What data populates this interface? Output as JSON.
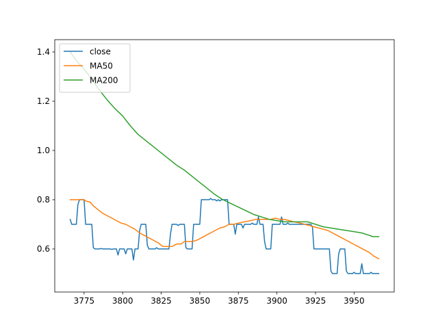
{
  "chart_data": {
    "type": "line",
    "title": "",
    "xlabel": "",
    "ylabel": "",
    "xlim": [
      3756,
      3976
    ],
    "ylim": [
      0.425,
      1.45
    ],
    "x_ticks": [
      3775,
      3800,
      3825,
      3850,
      3875,
      3900,
      3925,
      3950
    ],
    "y_ticks": [
      0.6,
      0.8,
      1.0,
      1.2,
      1.4
    ],
    "grid": false,
    "legend_position": "upper-left",
    "series": [
      {
        "name": "close",
        "color": "#1f77b4",
        "points": [
          [
            3766,
            0.72
          ],
          [
            3767,
            0.7
          ],
          [
            3770,
            0.7
          ],
          [
            3771,
            0.78
          ],
          [
            3772,
            0.8
          ],
          [
            3775,
            0.8
          ],
          [
            3776,
            0.7
          ],
          [
            3780,
            0.7
          ],
          [
            3781,
            0.605
          ],
          [
            3782,
            0.6
          ],
          [
            3785,
            0.6
          ],
          [
            3786,
            0.602
          ],
          [
            3787,
            0.6
          ],
          [
            3792,
            0.6
          ],
          [
            3793,
            0.598
          ],
          [
            3794,
            0.6
          ],
          [
            3796,
            0.6
          ],
          [
            3797,
            0.575
          ],
          [
            3798,
            0.6
          ],
          [
            3801,
            0.6
          ],
          [
            3802,
            0.58
          ],
          [
            3803,
            0.6
          ],
          [
            3806,
            0.6
          ],
          [
            3807,
            0.555
          ],
          [
            3808,
            0.6
          ],
          [
            3810,
            0.6
          ],
          [
            3811,
            0.675
          ],
          [
            3812,
            0.7
          ],
          [
            3815,
            0.7
          ],
          [
            3816,
            0.615
          ],
          [
            3817,
            0.6
          ],
          [
            3821,
            0.6
          ],
          [
            3822,
            0.605
          ],
          [
            3823,
            0.6
          ],
          [
            3830,
            0.6
          ],
          [
            3831,
            0.66
          ],
          [
            3832,
            0.7
          ],
          [
            3835,
            0.7
          ],
          [
            3836,
            0.695
          ],
          [
            3837,
            0.7
          ],
          [
            3840,
            0.7
          ],
          [
            3841,
            0.605
          ],
          [
            3842,
            0.6
          ],
          [
            3845,
            0.6
          ],
          [
            3846,
            0.7
          ],
          [
            3850,
            0.7
          ],
          [
            3851,
            0.8
          ],
          [
            3856,
            0.8
          ],
          [
            3857,
            0.805
          ],
          [
            3858,
            0.8
          ],
          [
            3860,
            0.8
          ],
          [
            3861,
            0.795
          ],
          [
            3862,
            0.8
          ],
          [
            3863,
            0.795
          ],
          [
            3864,
            0.8
          ],
          [
            3868,
            0.8
          ],
          [
            3869,
            0.7
          ],
          [
            3872,
            0.7
          ],
          [
            3873,
            0.66
          ],
          [
            3874,
            0.7
          ],
          [
            3877,
            0.7
          ],
          [
            3878,
            0.685
          ],
          [
            3879,
            0.7
          ],
          [
            3883,
            0.7
          ],
          [
            3884,
            0.705
          ],
          [
            3885,
            0.7
          ],
          [
            3887,
            0.7
          ],
          [
            3888,
            0.73
          ],
          [
            3889,
            0.7
          ],
          [
            3891,
            0.7
          ],
          [
            3892,
            0.63
          ],
          [
            3893,
            0.6
          ],
          [
            3896,
            0.6
          ],
          [
            3897,
            0.7
          ],
          [
            3902,
            0.7
          ],
          [
            3903,
            0.73
          ],
          [
            3904,
            0.7
          ],
          [
            3906,
            0.7
          ],
          [
            3907,
            0.705
          ],
          [
            3908,
            0.7
          ],
          [
            3922,
            0.7
          ],
          [
            3923,
            0.69
          ],
          [
            3924,
            0.6
          ],
          [
            3934,
            0.6
          ],
          [
            3935,
            0.51
          ],
          [
            3936,
            0.5
          ],
          [
            3939,
            0.5
          ],
          [
            3940,
            0.58
          ],
          [
            3941,
            0.6
          ],
          [
            3944,
            0.6
          ],
          [
            3945,
            0.51
          ],
          [
            3946,
            0.5
          ],
          [
            3949,
            0.5
          ],
          [
            3950,
            0.505
          ],
          [
            3951,
            0.5
          ],
          [
            3954,
            0.5
          ],
          [
            3955,
            0.54
          ],
          [
            3956,
            0.5
          ],
          [
            3960,
            0.5
          ],
          [
            3961,
            0.505
          ],
          [
            3962,
            0.5
          ],
          [
            3966,
            0.5
          ]
        ]
      },
      {
        "name": "MA50",
        "color": "#ff7f0e",
        "points": [
          [
            3766,
            0.8
          ],
          [
            3775,
            0.8
          ],
          [
            3776,
            0.795
          ],
          [
            3779,
            0.79
          ],
          [
            3781,
            0.775
          ],
          [
            3784,
            0.76
          ],
          [
            3787,
            0.745
          ],
          [
            3790,
            0.735
          ],
          [
            3793,
            0.725
          ],
          [
            3796,
            0.715
          ],
          [
            3799,
            0.705
          ],
          [
            3802,
            0.7
          ],
          [
            3805,
            0.69
          ],
          [
            3808,
            0.68
          ],
          [
            3811,
            0.665
          ],
          [
            3814,
            0.655
          ],
          [
            3817,
            0.645
          ],
          [
            3820,
            0.635
          ],
          [
            3823,
            0.625
          ],
          [
            3826,
            0.61
          ],
          [
            3832,
            0.61
          ],
          [
            3835,
            0.62
          ],
          [
            3838,
            0.62
          ],
          [
            3840,
            0.63
          ],
          [
            3845,
            0.63
          ],
          [
            3848,
            0.635
          ],
          [
            3851,
            0.645
          ],
          [
            3854,
            0.655
          ],
          [
            3857,
            0.665
          ],
          [
            3860,
            0.675
          ],
          [
            3863,
            0.685
          ],
          [
            3866,
            0.69
          ],
          [
            3869,
            0.7
          ],
          [
            3872,
            0.7
          ],
          [
            3875,
            0.705
          ],
          [
            3879,
            0.71
          ],
          [
            3883,
            0.715
          ],
          [
            3886,
            0.72
          ],
          [
            3896,
            0.72
          ],
          [
            3899,
            0.725
          ],
          [
            3902,
            0.72
          ],
          [
            3905,
            0.72
          ],
          [
            3908,
            0.715
          ],
          [
            3911,
            0.71
          ],
          [
            3915,
            0.705
          ],
          [
            3918,
            0.7
          ],
          [
            3921,
            0.695
          ],
          [
            3924,
            0.69
          ],
          [
            3927,
            0.685
          ],
          [
            3930,
            0.68
          ],
          [
            3933,
            0.675
          ],
          [
            3936,
            0.665
          ],
          [
            3939,
            0.655
          ],
          [
            3942,
            0.645
          ],
          [
            3945,
            0.635
          ],
          [
            3948,
            0.625
          ],
          [
            3951,
            0.615
          ],
          [
            3954,
            0.605
          ],
          [
            3957,
            0.595
          ],
          [
            3960,
            0.585
          ],
          [
            3963,
            0.57
          ],
          [
            3966,
            0.56
          ]
        ]
      },
      {
        "name": "MA200",
        "color": "#2ca02c",
        "points": [
          [
            3766,
            1.4
          ],
          [
            3770,
            1.365
          ],
          [
            3775,
            1.33
          ],
          [
            3780,
            1.29
          ],
          [
            3785,
            1.245
          ],
          [
            3790,
            1.205
          ],
          [
            3795,
            1.17
          ],
          [
            3800,
            1.14
          ],
          [
            3805,
            1.1
          ],
          [
            3810,
            1.065
          ],
          [
            3815,
            1.04
          ],
          [
            3820,
            1.015
          ],
          [
            3825,
            0.99
          ],
          [
            3830,
            0.965
          ],
          [
            3835,
            0.94
          ],
          [
            3840,
            0.92
          ],
          [
            3845,
            0.895
          ],
          [
            3850,
            0.87
          ],
          [
            3855,
            0.845
          ],
          [
            3860,
            0.82
          ],
          [
            3865,
            0.8
          ],
          [
            3870,
            0.785
          ],
          [
            3875,
            0.77
          ],
          [
            3880,
            0.755
          ],
          [
            3885,
            0.74
          ],
          [
            3890,
            0.73
          ],
          [
            3895,
            0.72
          ],
          [
            3900,
            0.715
          ],
          [
            3905,
            0.71
          ],
          [
            3910,
            0.71
          ],
          [
            3920,
            0.71
          ],
          [
            3925,
            0.7
          ],
          [
            3930,
            0.69
          ],
          [
            3935,
            0.685
          ],
          [
            3940,
            0.68
          ],
          [
            3945,
            0.675
          ],
          [
            3950,
            0.67
          ],
          [
            3955,
            0.665
          ],
          [
            3960,
            0.655
          ],
          [
            3962,
            0.65
          ],
          [
            3966,
            0.65
          ]
        ]
      }
    ]
  }
}
